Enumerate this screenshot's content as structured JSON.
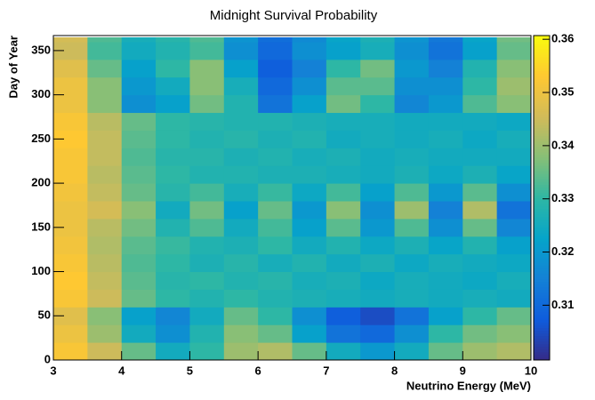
{
  "chart_data": {
    "type": "heatmap",
    "title": "Midnight Survival Probability",
    "xlabel": "Neutrino Energy (MeV)",
    "ylabel": "Day of Year",
    "xbins": [
      3,
      3.5,
      4,
      4.5,
      5,
      5.5,
      6,
      6.5,
      7,
      7.5,
      8,
      8.5,
      9,
      9.5,
      10
    ],
    "ybins": [
      0,
      20,
      40,
      60,
      80,
      100,
      120,
      140,
      160,
      180,
      200,
      220,
      240,
      260,
      280,
      300,
      320,
      340,
      360,
      365
    ],
    "z": [
      [
        0.352,
        0.345,
        0.335,
        0.325,
        0.33,
        0.34,
        0.342,
        0.335,
        0.325,
        0.32,
        0.325,
        0.335,
        0.34,
        0.342
      ],
      [
        0.35,
        0.34,
        0.325,
        0.318,
        0.328,
        0.338,
        0.335,
        0.322,
        0.312,
        0.31,
        0.318,
        0.33,
        0.336,
        0.338
      ],
      [
        0.348,
        0.338,
        0.322,
        0.316,
        0.325,
        0.335,
        0.33,
        0.318,
        0.308,
        0.305,
        0.312,
        0.322,
        0.33,
        0.335
      ],
      [
        0.352,
        0.345,
        0.335,
        0.33,
        0.328,
        0.33,
        0.328,
        0.327,
        0.326,
        0.325,
        0.326,
        0.325,
        0.326,
        0.325
      ],
      [
        0.353,
        0.344,
        0.334,
        0.329,
        0.33,
        0.328,
        0.329,
        0.326,
        0.327,
        0.324,
        0.326,
        0.325,
        0.324,
        0.326
      ],
      [
        0.352,
        0.343,
        0.333,
        0.33,
        0.327,
        0.329,
        0.326,
        0.328,
        0.325,
        0.327,
        0.324,
        0.326,
        0.325,
        0.324
      ],
      [
        0.351,
        0.342,
        0.334,
        0.331,
        0.328,
        0.327,
        0.33,
        0.325,
        0.328,
        0.324,
        0.327,
        0.323,
        0.328,
        0.322
      ],
      [
        0.35,
        0.343,
        0.336,
        0.328,
        0.333,
        0.325,
        0.332,
        0.322,
        0.334,
        0.32,
        0.333,
        0.318,
        0.335,
        0.316
      ],
      [
        0.35,
        0.346,
        0.338,
        0.325,
        0.336,
        0.322,
        0.335,
        0.32,
        0.338,
        0.318,
        0.34,
        0.315,
        0.342,
        0.312
      ],
      [
        0.351,
        0.344,
        0.335,
        0.329,
        0.332,
        0.326,
        0.331,
        0.324,
        0.332,
        0.322,
        0.333,
        0.32,
        0.334,
        0.318
      ],
      [
        0.352,
        0.343,
        0.334,
        0.33,
        0.328,
        0.328,
        0.327,
        0.327,
        0.326,
        0.325,
        0.327,
        0.324,
        0.327,
        0.323
      ],
      [
        0.352,
        0.344,
        0.333,
        0.329,
        0.329,
        0.327,
        0.328,
        0.326,
        0.327,
        0.325,
        0.326,
        0.325,
        0.325,
        0.325
      ],
      [
        0.353,
        0.344,
        0.334,
        0.33,
        0.328,
        0.329,
        0.327,
        0.328,
        0.325,
        0.326,
        0.325,
        0.326,
        0.324,
        0.326
      ],
      [
        0.352,
        0.343,
        0.335,
        0.33,
        0.329,
        0.328,
        0.328,
        0.327,
        0.326,
        0.326,
        0.325,
        0.325,
        0.325,
        0.324
      ],
      [
        0.35,
        0.338,
        0.318,
        0.322,
        0.336,
        0.328,
        0.312,
        0.322,
        0.336,
        0.33,
        0.316,
        0.32,
        0.333,
        0.338
      ],
      [
        0.35,
        0.338,
        0.32,
        0.325,
        0.338,
        0.326,
        0.31,
        0.318,
        0.334,
        0.334,
        0.318,
        0.318,
        0.33,
        0.34
      ],
      [
        0.348,
        0.335,
        0.322,
        0.33,
        0.338,
        0.322,
        0.308,
        0.315,
        0.33,
        0.336,
        0.32,
        0.315,
        0.328,
        0.338
      ],
      [
        0.345,
        0.332,
        0.325,
        0.328,
        0.332,
        0.318,
        0.31,
        0.318,
        0.322,
        0.326,
        0.318,
        0.312,
        0.322,
        0.335
      ],
      [
        0.346,
        0.333,
        0.326,
        0.329,
        0.333,
        0.319,
        0.311,
        0.317,
        0.323,
        0.327,
        0.319,
        0.313,
        0.323,
        0.336
      ]
    ],
    "xlim": [
      3,
      10
    ],
    "xticks": [
      3,
      4,
      5,
      6,
      7,
      8,
      9,
      10
    ],
    "ylim": [
      0,
      367
    ],
    "yticks": [
      0,
      50,
      100,
      150,
      200,
      250,
      300,
      350
    ],
    "zlim": [
      0.2997,
      0.3607
    ],
    "zticks": [
      0.31,
      0.32,
      0.33,
      0.34,
      0.35,
      0.36
    ],
    "colorscale": [
      "#352a87",
      "#0f5cdd",
      "#1481d6",
      "#06a4ca",
      "#2eb7a4",
      "#87bf77",
      "#d1bb59",
      "#fec832",
      "#f9fb0e"
    ]
  }
}
